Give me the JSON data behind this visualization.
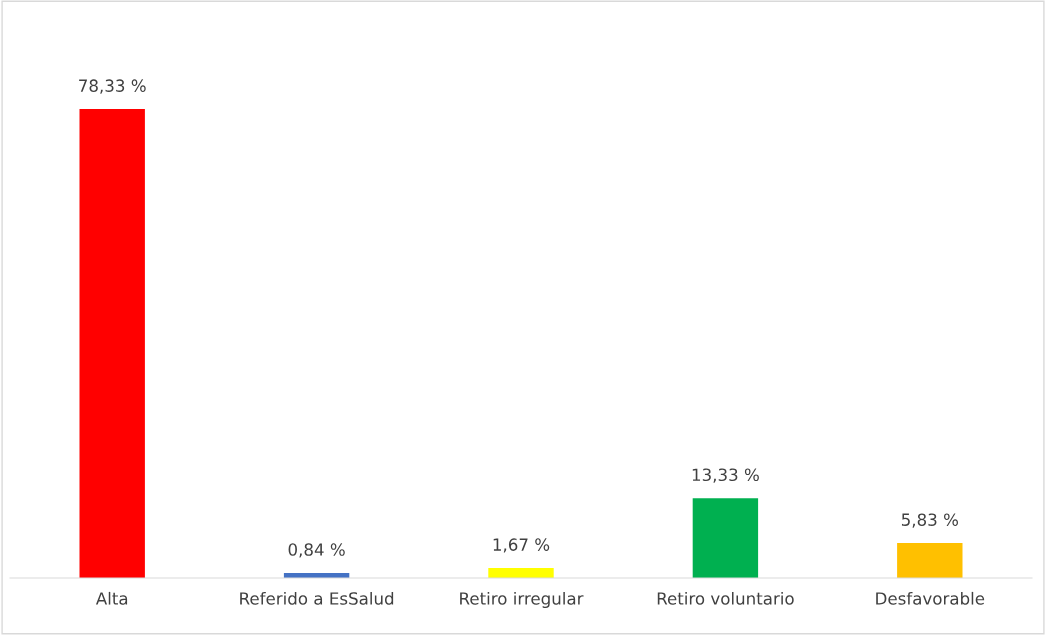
{
  "chart_data": {
    "type": "bar",
    "categories": [
      "Alta",
      "Referido a EsSalud",
      "Retiro irregular",
      "Retiro voluntario",
      "Desfavorable"
    ],
    "values": [
      78.33,
      0.84,
      1.67,
      13.33,
      5.83
    ],
    "colors": [
      "#ff0000",
      "#4472c4",
      "#ffff00",
      "#00b050",
      "#ffc000"
    ],
    "value_labels": [
      "78,33 %",
      "0,84 %",
      "1,67 %",
      "13,33 %",
      "5,83 %"
    ],
    "legend": false
  }
}
